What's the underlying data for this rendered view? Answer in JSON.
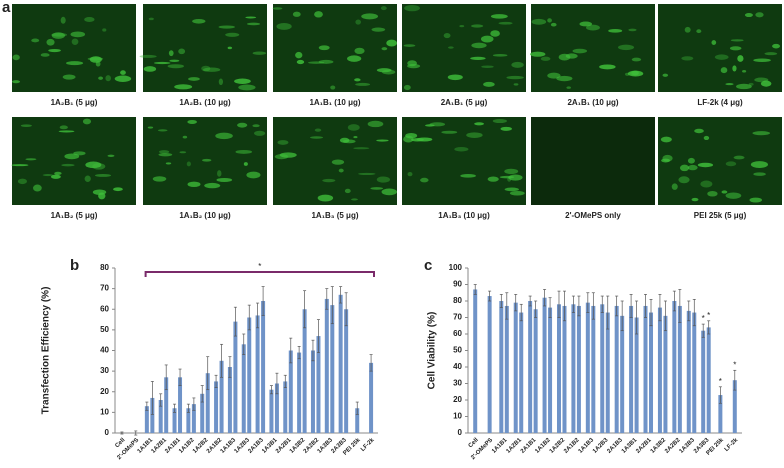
{
  "panel_labels": [
    "a",
    "b",
    "c"
  ],
  "micrographs": {
    "captions": [
      "1A₂B₁ (5 μg)",
      "1A₂B₁ (10 μg)",
      "1A₁B₁ (10 μg)",
      "2A₁B₁ (5 μg)",
      "2A₁B₁ (10 μg)",
      "LF-2k (4 μg)",
      "1A₁B₂ (5 μg)",
      "1A₁B₂ (10 μg)",
      "1A₁B₃ (5 μg)",
      "1A₁B₃ (10 μg)",
      "2'-OMePS only",
      "PEI 25k (5 μg)"
    ]
  },
  "chart_data": [
    {
      "type": "bar",
      "ylabel": "Transfection Efficiency (%)",
      "bracket_label": "*",
      "categories": [
        "Cell",
        "2'-OMePS",
        "1A1B1",
        "1A2B1",
        "2A1B1",
        "1A1B2",
        "1A2B2",
        "2A1B2",
        "1A1B3",
        "1A2B3",
        "2A1B3",
        "1A3B1",
        "2A2B1",
        "1A3B2",
        "2A2B2",
        "1A3B3",
        "2A3B3",
        "PEI 25k",
        "LF-2k"
      ],
      "series": [
        {
          "color": "#6f93c8",
          "values": [
            0,
            0,
            13,
            16,
            12,
            12,
            19,
            25,
            32,
            43,
            57,
            21,
            25,
            39,
            40,
            65,
            67,
            12,
            34
          ],
          "errors": [
            0.5,
            1,
            2,
            3,
            2,
            2,
            4,
            3,
            5,
            5,
            6,
            2,
            3,
            3,
            5,
            5,
            4,
            3,
            4
          ]
        },
        {
          "color": "#6f93c8",
          "values": [
            null,
            null,
            17,
            27,
            27,
            14,
            29,
            35,
            54,
            56,
            64,
            24,
            40,
            60,
            47,
            62,
            60,
            null,
            null
          ],
          "errors": [
            null,
            null,
            8,
            6,
            4,
            3,
            8,
            8,
            7,
            6,
            7,
            5,
            6,
            9,
            8,
            9,
            8,
            null,
            null
          ]
        }
      ],
      "ylim": [
        0,
        80
      ],
      "yticks": [
        0,
        10,
        20,
        30,
        40,
        50,
        60,
        70,
        80
      ]
    },
    {
      "type": "bar",
      "ylabel": "Cell Viability (%)",
      "categories": [
        "Cell",
        "2'-OMePS",
        "1A1B1",
        "1A2B1",
        "2A1B1",
        "1A1B2",
        "1A2B2",
        "2A1B2",
        "1A1B3",
        "1A2B3",
        "2A1B3",
        "1A3B1",
        "2A2B1",
        "1A3B2",
        "2A2B2",
        "1A3B3",
        "2A3B3",
        "PEI 25k",
        "LF-2k"
      ],
      "series": [
        {
          "color": "#6f93c8",
          "values": [
            87,
            83,
            80,
            79,
            80,
            82,
            78,
            78,
            79,
            78,
            77,
            77,
            77,
            76,
            80,
            74,
            62,
            23,
            32
          ],
          "errors": [
            3,
            3,
            4,
            5,
            3,
            5,
            8,
            5,
            6,
            5,
            6,
            7,
            7,
            8,
            6,
            6,
            4,
            5,
            6
          ],
          "significance": [
            null,
            null,
            null,
            null,
            null,
            null,
            null,
            null,
            null,
            null,
            null,
            null,
            null,
            null,
            null,
            null,
            "*",
            "*",
            "*"
          ]
        },
        {
          "color": "#6f93c8",
          "values": [
            null,
            null,
            77,
            73,
            75,
            76,
            77,
            77,
            77,
            73,
            71,
            70,
            73,
            71,
            77,
            73,
            64,
            null,
            null
          ],
          "errors": [
            null,
            null,
            8,
            5,
            5,
            6,
            9,
            6,
            8,
            10,
            9,
            10,
            8,
            9,
            10,
            8,
            4,
            null,
            null
          ],
          "significance": [
            null,
            null,
            null,
            null,
            null,
            null,
            null,
            null,
            null,
            null,
            null,
            null,
            null,
            null,
            null,
            null,
            "*",
            null,
            null
          ]
        }
      ],
      "ylim": [
        0,
        100
      ],
      "yticks": [
        0,
        10,
        20,
        30,
        40,
        50,
        60,
        70,
        80,
        90,
        100
      ]
    }
  ]
}
